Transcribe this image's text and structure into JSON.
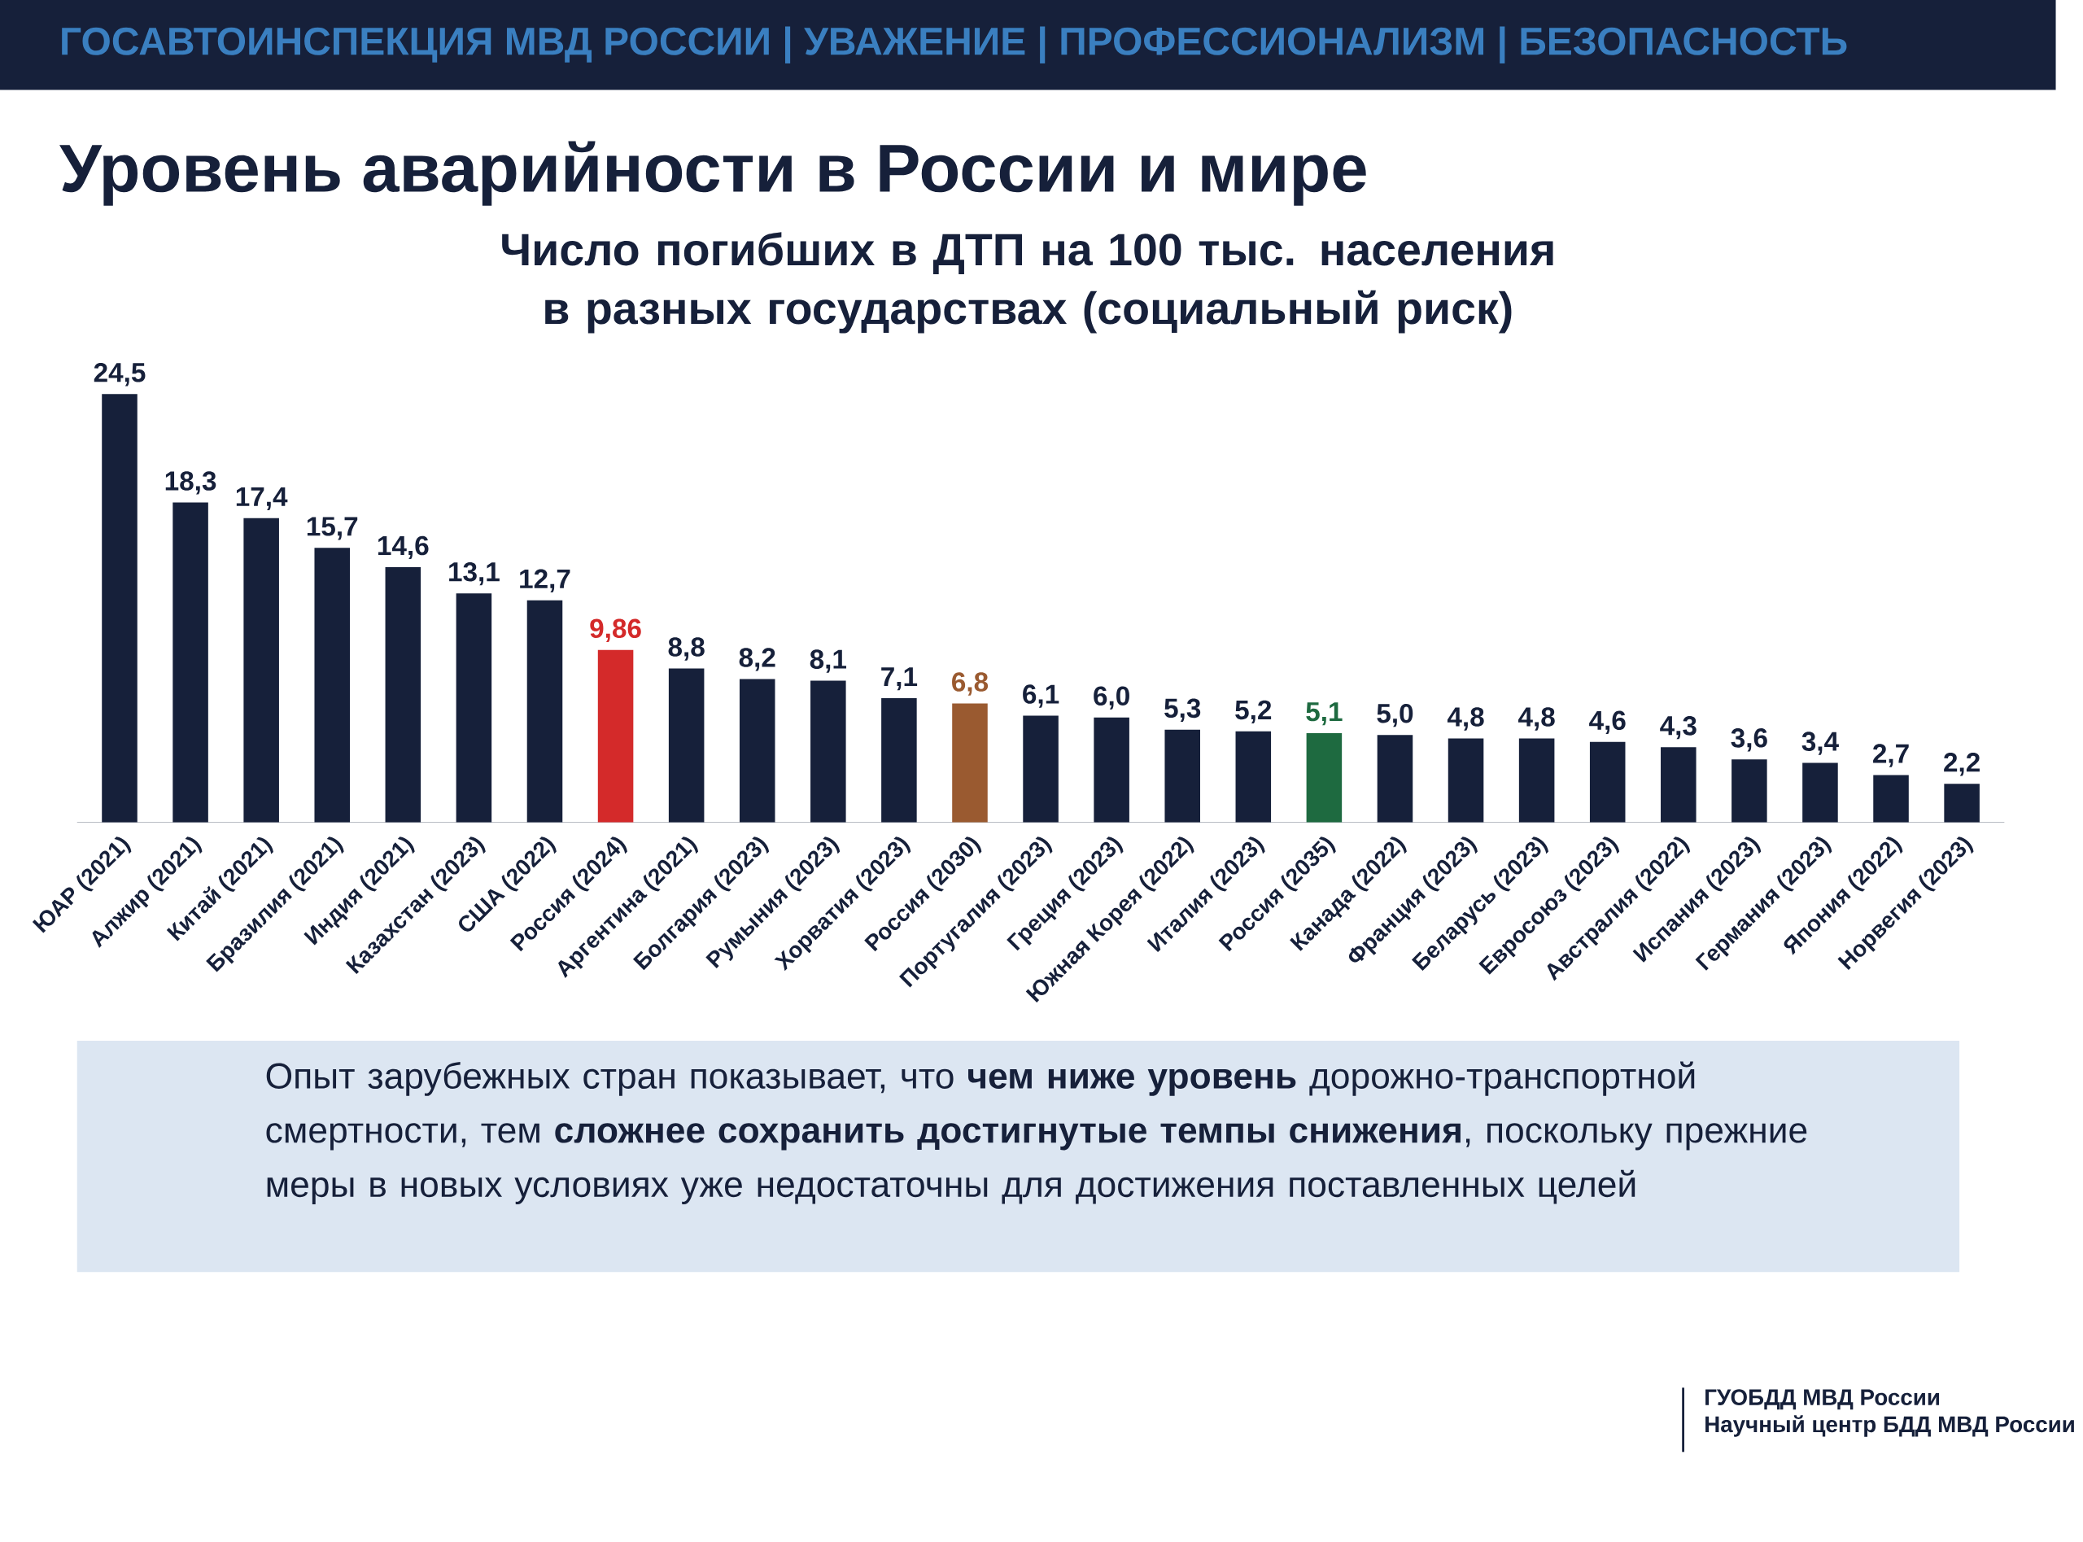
{
  "chart_data": {
    "type": "bar",
    "title": "Уровень аварийности в России и мире",
    "subtitle": "Число погибших в ДТП на 100 тыс. населения в разных государствах (социальный риск)",
    "categories": [
      "ЮАР (2021)",
      "Алжир (2021)",
      "Китай (2021)",
      "Бразилия (2021)",
      "Индия (2021)",
      "Казахстан (2023)",
      "США (2022)",
      "Россия (2024)",
      "Аргентина (2021)",
      "Болгария (2023)",
      "Румыния (2023)",
      "Хорватия (2023)",
      "Россия (2030)",
      "Португалия (2023)",
      "Греция (2023)",
      "Южная Корея (2022)",
      "Италия (2023)",
      "Россия (2035)",
      "Канада (2022)",
      "Франция (2023)",
      "Беларусь (2023)",
      "Евросоюз (2023)",
      "Австралия (2022)",
      "Испания (2023)",
      "Германия (2023)",
      "Япония (2022)",
      "Норвегия (2023)"
    ],
    "values": [
      24.5,
      18.3,
      17.4,
      15.7,
      14.6,
      13.1,
      12.7,
      9.86,
      8.8,
      8.2,
      8.1,
      7.1,
      6.8,
      6.1,
      6.0,
      5.3,
      5.2,
      5.1,
      5.0,
      4.8,
      4.8,
      4.6,
      4.3,
      3.6,
      3.4,
      2.7,
      2.2
    ],
    "value_labels": [
      "24,5",
      "18,3",
      "17,4",
      "15,7",
      "14,6",
      "13,1",
      "12,7",
      "9,86",
      "8,8",
      "8,2",
      "8,1",
      "7,1",
      "6,8",
      "6,1",
      "6,0",
      "5,3",
      "5,2",
      "5,1",
      "5,0",
      "4,8",
      "4,8",
      "4,6",
      "4,3",
      "3,6",
      "3,4",
      "2,7",
      "2,2"
    ],
    "colors": [
      "#16203a",
      "#16203a",
      "#16203a",
      "#16203a",
      "#16203a",
      "#16203a",
      "#16203a",
      "#d42a2a",
      "#16203a",
      "#16203a",
      "#16203a",
      "#16203a",
      "#9a5a30",
      "#16203a",
      "#16203a",
      "#16203a",
      "#16203a",
      "#1e6a40",
      "#16203a",
      "#16203a",
      "#16203a",
      "#16203a",
      "#16203a",
      "#16203a",
      "#16203a",
      "#16203a",
      "#16203a"
    ],
    "annotations": [
      "ГОСАВТОИНСПЕКЦИЯ МВД РОССИИ | УВАЖЕНИЕ | ПРОФЕССИОНАЛИЗМ | БЕЗОПАСНОСТЬ",
      "Опыт зарубежных стран показывает, что **чем ниже уровень** дорожно-транспортной смертности, тем **сложнее сохранить достигнутые темпы снижения**, поскольку прежние меры в новых условиях уже недостаточны для достижения поставленных целей",
      "ГУОБДД МВД России",
      "Научный центр БДД МВД России"
    ]
  }
}
